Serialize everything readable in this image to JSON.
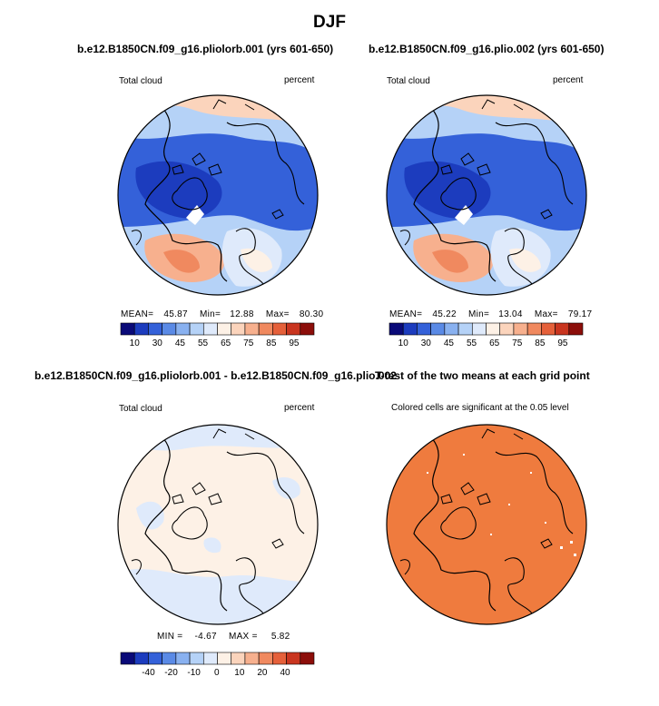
{
  "main_title": "DJF",
  "panels": {
    "p1": {
      "title": "b.e12.B1850CN.f09_g16.pliolorb.001 (yrs 601-650)",
      "left_label": "Total cloud",
      "right_label": "percent",
      "stats": {
        "mean_label": "MEAN=",
        "mean": "45.87",
        "min_label": "Min=",
        "min": "12.88",
        "max_label": "Max=",
        "max": "80.30"
      }
    },
    "p2": {
      "title": "b.e12.B1850CN.f09_g16.plio.002 (yrs 601-650)",
      "left_label": "Total cloud",
      "right_label": "percent",
      "stats": {
        "mean_label": "MEAN=",
        "mean": "45.22",
        "min_label": "Min=",
        "min": "13.04",
        "max_label": "Max=",
        "max": "79.17"
      }
    },
    "p3": {
      "title": "b.e12.B1850CN.f09_g16.pliolorb.001 - b.e12.B1850CN.f09_g16.plio.002",
      "left_label": "Total cloud",
      "right_label": "percent",
      "stats": {
        "min_label": "MIN =",
        "min": "-4.67",
        "max_label": "MAX =",
        "max": "5.82"
      }
    },
    "p4": {
      "title": "T-test of the two means at each grid point",
      "subtitle": "Colored cells are significant at the 0.05 level"
    }
  },
  "colorbars": {
    "abs": {
      "colors": [
        "#0a0a78",
        "#1c3cbe",
        "#3461d9",
        "#5a8ae6",
        "#89b1f0",
        "#b5d2f7",
        "#dfeafb",
        "#fdf1e6",
        "#fbd4bc",
        "#f7b08e",
        "#f0895f",
        "#e5603a",
        "#c9351f",
        "#8c0e0a"
      ],
      "labels": [
        "10",
        "30",
        "45",
        "55",
        "65",
        "75",
        "85",
        "95"
      ]
    },
    "diff": {
      "colors": [
        "#0a0a78",
        "#1c3cbe",
        "#3461d9",
        "#5a8ae6",
        "#89b1f0",
        "#b5d2f7",
        "#dfeafb",
        "#fdf1e6",
        "#fbd4bc",
        "#f7b08e",
        "#f0895f",
        "#e5603a",
        "#c9351f",
        "#8c0e0a"
      ],
      "labels": [
        "-40",
        "-20",
        "-10",
        "0",
        "10",
        "20",
        "40"
      ]
    }
  },
  "chart_data": [
    {
      "type": "heatmap",
      "title": "b.e12.B1850CN.f09_g16.pliolorb.001 (yrs 601-650)",
      "variable": "Total cloud",
      "units": "percent",
      "projection": "polar stereographic (north)",
      "mean": 45.87,
      "min": 12.88,
      "max": 80.3
    },
    {
      "type": "heatmap",
      "title": "b.e12.B1850CN.f09_g16.plio.002 (yrs 601-650)",
      "variable": "Total cloud",
      "units": "percent",
      "projection": "polar stereographic (north)",
      "mean": 45.22,
      "min": 13.04,
      "max": 79.17
    },
    {
      "type": "heatmap",
      "title": "b.e12.B1850CN.f09_g16.pliolorb.001 - b.e12.B1850CN.f09_g16.plio.002",
      "variable": "Total cloud",
      "units": "percent",
      "min": -4.67,
      "max": 5.82
    },
    {
      "type": "heatmap",
      "title": "T-test of the two means at each grid point",
      "note": "Colored cells are significant at the 0.05 level"
    }
  ],
  "colors": {
    "land_outline": "#000000",
    "ttest_fill": "#ef7b3e"
  }
}
